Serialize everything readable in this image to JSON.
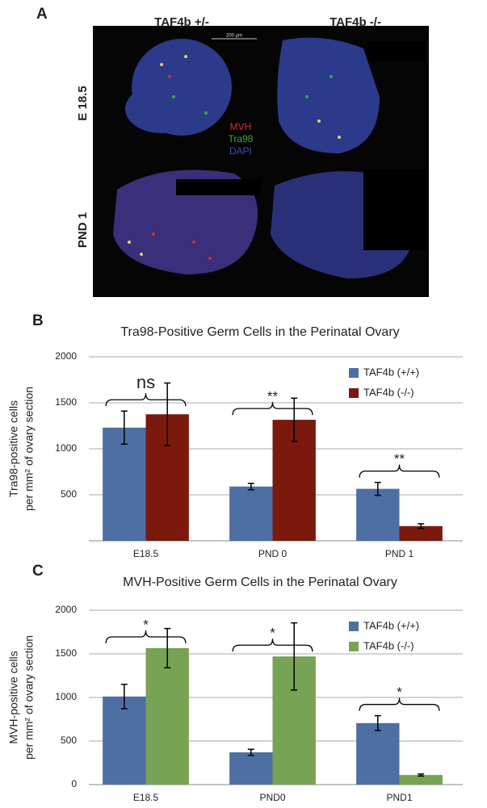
{
  "panel_a": {
    "panel_label": "A",
    "columns": [
      "TAF4b +/-",
      "TAF4b -/-"
    ],
    "rows": [
      "E 18.5",
      "PND 1"
    ],
    "scale_bar": "200 µm",
    "stain_legend": [
      {
        "name": "MVH",
        "color": "#d0302c"
      },
      {
        "name": "Tra98",
        "color": "#3ea83a"
      },
      {
        "name": "DAPI",
        "color": "#3350b0"
      }
    ]
  },
  "chart_data": [
    {
      "type": "bar",
      "panel_label": "B",
      "title": "Tra98-Positive Germ Cells in the Perinatal Ovary",
      "y_label": [
        "Tra98-positive cells",
        "per mm² of ovary section"
      ],
      "categories": [
        "E18.5",
        "PND 0",
        "PND 1"
      ],
      "series": [
        {
          "name": "TAF4b (+/+)",
          "color": "#4e6fa3",
          "values": [
            1230,
            590,
            565
          ],
          "errors": [
            180,
            35,
            70
          ]
        },
        {
          "name": "TAF4b (-/-)",
          "color": "#7b1a0c",
          "values": [
            1375,
            1315,
            160
          ],
          "errors": [
            340,
            235,
            25
          ]
        }
      ],
      "annotations": [
        "ns",
        "**",
        "**"
      ],
      "ylim": [
        0,
        2000
      ],
      "yticks": [
        500,
        1000,
        1500,
        2000
      ],
      "grid": true
    },
    {
      "type": "bar",
      "panel_label": "C",
      "title": "MVH-Positive Germ Cells in the Perinatal Ovary",
      "y_label": [
        "MVH-positive cells",
        "per mm² of ovary section"
      ],
      "categories": [
        "E18.5",
        "PND0",
        "PND1"
      ],
      "series": [
        {
          "name": "TAF4b (+/+)",
          "color": "#4e6fa3",
          "values": [
            1010,
            370,
            705
          ],
          "errors": [
            140,
            35,
            85
          ]
        },
        {
          "name": "TAF4b (-/-)",
          "color": "#77a354",
          "values": [
            1565,
            1470,
            110
          ],
          "errors": [
            225,
            385,
            12
          ]
        }
      ],
      "annotations": [
        "*",
        "*",
        "*"
      ],
      "ylim": [
        0,
        2000
      ],
      "yticks": [
        0,
        500,
        1000,
        1500,
        2000
      ],
      "grid": true
    }
  ]
}
